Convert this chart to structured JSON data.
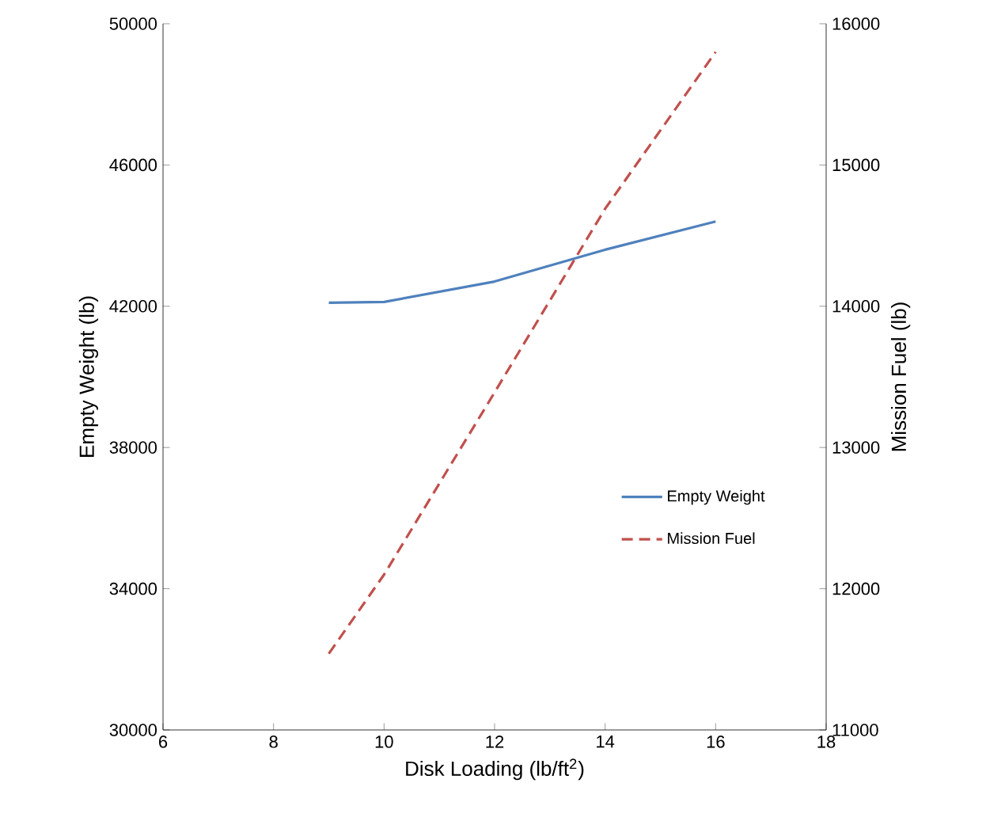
{
  "chart_data": {
    "type": "line",
    "x": [
      9,
      10,
      12,
      14,
      16
    ],
    "series": [
      {
        "name": "Empty Weight",
        "color": "#4f81bd",
        "line_style": "solid",
        "values": [
          42100,
          42120,
          42700,
          43600,
          44400
        ]
      },
      {
        "name": "Mission Fuel",
        "color": "#c0504d",
        "line_style": "dashed",
        "axis": "y2",
        "values": [
          11540,
          12100,
          13390,
          14690,
          15800
        ]
      }
    ],
    "xlabel": "Disk Loading (lb/ft$^{2}$)",
    "ylabel": "Empty Weight (lb)",
    "y2label": "Mission Fuel (lb)",
    "xlim": [
      6,
      18
    ],
    "xticks": [
      6,
      8,
      10,
      12,
      14,
      16,
      18
    ],
    "ylim": [
      30000,
      50000
    ],
    "yticks": [
      30000,
      34000,
      38000,
      42000,
      46000,
      50000
    ],
    "y2lim": [
      11000,
      16000
    ],
    "y2ticks": [
      11000,
      12000,
      13000,
      14000,
      15000,
      16000
    ],
    "legend": "right",
    "grid": false,
    "marker": "none"
  }
}
